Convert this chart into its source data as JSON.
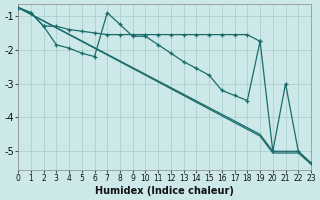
{
  "xlabel": "Humidex (Indice chaleur)",
  "background_color": "#cde8e8",
  "grid_color": "#a8cccc",
  "line_color": "#1a6b6b",
  "xlim": [
    0,
    23
  ],
  "ylim": [
    -5.55,
    -0.65
  ],
  "yticks": [
    -5,
    -4,
    -3,
    -2,
    -1
  ],
  "xticks": [
    0,
    1,
    2,
    3,
    4,
    5,
    6,
    7,
    8,
    9,
    10,
    11,
    12,
    13,
    14,
    15,
    16,
    17,
    18,
    19,
    20,
    21,
    22,
    23
  ],
  "line_nearly_flat": {
    "x": [
      0,
      1,
      2,
      3,
      4,
      5,
      6,
      7,
      8,
      9,
      10,
      11,
      12,
      13,
      14,
      15,
      16,
      17,
      18,
      19
    ],
    "y": [
      -0.75,
      -0.9,
      -1.3,
      -1.3,
      -1.4,
      -1.45,
      -1.5,
      -1.55,
      -1.55,
      -1.55,
      -1.55,
      -1.55,
      -1.55,
      -1.55,
      -1.55,
      -1.55,
      -1.55,
      -1.55,
      -1.55,
      -1.75
    ]
  },
  "line_zigzag": {
    "x": [
      0,
      1,
      2,
      3,
      4,
      5,
      6,
      7,
      8,
      9,
      10,
      11,
      12,
      13,
      14,
      15,
      16,
      17,
      18,
      19,
      20,
      21,
      22,
      23
    ],
    "y": [
      -0.75,
      -0.9,
      -1.3,
      -1.85,
      -1.95,
      -2.1,
      -2.2,
      -0.9,
      -1.25,
      -1.6,
      -1.6,
      -1.85,
      -2.1,
      -2.35,
      -2.55,
      -2.75,
      -3.2,
      -3.35,
      -3.5,
      -1.75,
      -5.0,
      -3.0,
      -5.0,
      -5.35
    ]
  },
  "line_diag1": {
    "x": [
      0,
      19,
      20,
      21,
      22,
      23
    ],
    "y": [
      -0.75,
      -4.5,
      -5.0,
      -5.0,
      -5.0,
      -5.35
    ]
  },
  "line_diag2": {
    "x": [
      0,
      19,
      20,
      21,
      22,
      23
    ],
    "y": [
      -0.75,
      -4.55,
      -5.05,
      -5.05,
      -5.05,
      -5.38
    ]
  }
}
